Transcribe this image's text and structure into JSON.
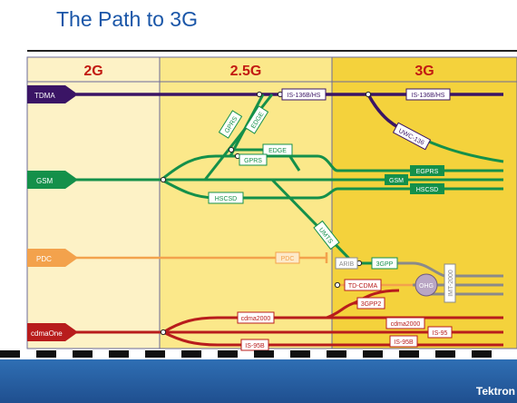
{
  "title": "The Path to 3G",
  "eras": [
    "2G",
    "2.5G",
    "3G"
  ],
  "sources": [
    "TDMA",
    "GSM",
    "PDC",
    "cdmaOne"
  ],
  "labels": {
    "is136b_hs_a": "IS-136B/HS",
    "is136b_hs_b": "IS-136B/HS",
    "uwc136": "UWC-136",
    "gprs_diag": "GPRS",
    "edge_diag": "EDGE",
    "edge": "EDGE",
    "gprs": "GPRS",
    "egprs": "EGPRS",
    "gsm": "GSM",
    "hscsd_a": "HSCSD",
    "hscsd_b": "HSCSD",
    "umts": "UMTS",
    "pdc": "PDC",
    "arib": "ARIB",
    "threegpp": "3GPP",
    "ohg": "OHG",
    "imt2000": "IMT-2000",
    "tdcdma": "TD-CDMA",
    "threegpp2": "3GPP2",
    "cdma2000_a": "cdma2000",
    "cdma2000_b": "cdma2000",
    "is95": "IS-95",
    "is95b_a": "IS-95B",
    "is95b_b": "IS-95B"
  },
  "brand": "Tektron",
  "colors": {
    "tdma": "#3a1465",
    "gsm": "#14904a",
    "pdc": "#f3a24c",
    "cdma": "#b81c1c",
    "era2g": "#fdf2c6",
    "era25g": "#fbe88a",
    "era3g": "#f4d23c",
    "era_label": "#c21a12",
    "imt": "#8a8a8a"
  }
}
